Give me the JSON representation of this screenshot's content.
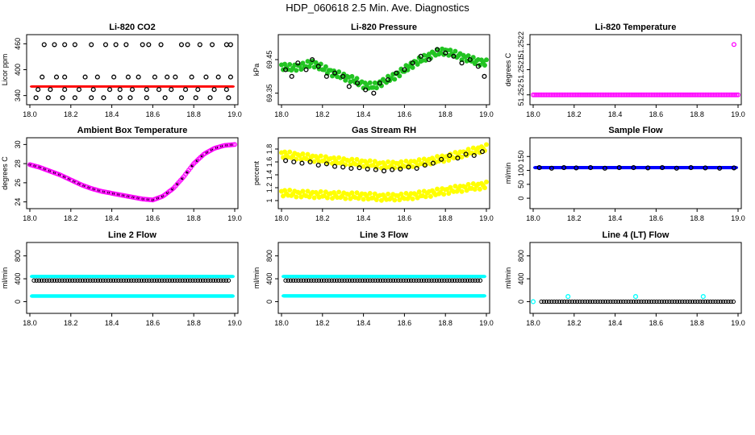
{
  "page_title": "HDP_060618  2.5 Min. Ave. Diagnostics",
  "colors": {
    "red": "#ff0000",
    "green": "#22c422",
    "magenta": "#ff00ff",
    "yellow": "#ffff00",
    "blue": "#0000ff",
    "cyan": "#00ffff",
    "black": "#000000"
  },
  "chart_data": [
    {
      "id": "co2",
      "type": "scatter",
      "title": "Li-820 CO2",
      "ylabel": "Licor ppm",
      "xlim": [
        18.0,
        19.0
      ],
      "ylim": [
        330,
        470
      ],
      "xticks": [
        "18.0",
        "18.2",
        "18.4",
        "18.6",
        "18.8",
        "19.0"
      ],
      "yticks": [
        340,
        400,
        460
      ],
      "ytick_rotated": true,
      "series": [
        {
          "name": "co2_avg",
          "color": "red",
          "style": "band",
          "x": [
            18.0,
            19.0
          ],
          "y": [
            360,
            362
          ]
        },
        {
          "name": "co2_high",
          "color": "black",
          "style": "open",
          "x": [
            18.07,
            18.12,
            18.17,
            18.22,
            18.3,
            18.37,
            18.42,
            18.47,
            18.55,
            18.58,
            18.64,
            18.74,
            18.77,
            18.83,
            18.89,
            18.96,
            18.98
          ],
          "y": [
            458,
            458,
            458,
            458,
            458,
            458,
            458,
            458,
            458,
            458,
            458,
            458,
            458,
            458,
            458,
            458,
            458
          ]
        },
        {
          "name": "co2_mid",
          "color": "black",
          "style": "open",
          "x": [
            18.06,
            18.13,
            18.17,
            18.27,
            18.33,
            18.41,
            18.48,
            18.53,
            18.61,
            18.67,
            18.71,
            18.79,
            18.86,
            18.92,
            18.98
          ],
          "y": [
            383,
            383,
            383,
            383,
            383,
            383,
            383,
            383,
            383,
            383,
            383,
            383,
            383,
            383,
            383
          ]
        },
        {
          "name": "co2_low1",
          "color": "black",
          "style": "open",
          "x": [
            18.04,
            18.1,
            18.17,
            18.24,
            18.31,
            18.39,
            18.44,
            18.5,
            18.57,
            18.63,
            18.69,
            18.76,
            18.82,
            18.9,
            18.96
          ],
          "y": [
            354,
            354,
            354,
            354,
            354,
            354,
            354,
            354,
            354,
            354,
            354,
            354,
            354,
            354,
            354
          ]
        },
        {
          "name": "co2_low2",
          "color": "black",
          "style": "open",
          "x": [
            18.03,
            18.09,
            18.16,
            18.22,
            18.3,
            18.36,
            18.44,
            18.49,
            18.57,
            18.66,
            18.74,
            18.81,
            18.88,
            18.97
          ],
          "y": [
            335,
            335,
            335,
            335,
            335,
            335,
            335,
            335,
            335,
            335,
            335,
            335,
            335,
            335
          ]
        }
      ]
    },
    {
      "id": "pressure",
      "type": "scatter",
      "title": "Li-820 Pressure",
      "ylabel": "kPa",
      "xlim": [
        18.0,
        19.0
      ],
      "ylim": [
        69.33,
        69.51
      ],
      "xticks": [
        "18.0",
        "18.2",
        "18.4",
        "18.6",
        "18.8",
        "19.0"
      ],
      "yticks": [
        69.35,
        69.45
      ],
      "ytick_rotated": true,
      "series": [
        {
          "name": "pressure_green",
          "color": "green",
          "style": "band_curve",
          "x": [
            18.0,
            18.05,
            18.1,
            18.15,
            18.2,
            18.25,
            18.3,
            18.35,
            18.4,
            18.45,
            18.5,
            18.55,
            18.6,
            18.65,
            18.7,
            18.75,
            18.8,
            18.85,
            18.9,
            18.95,
            19.0
          ],
          "y": [
            69.43,
            69.425,
            69.43,
            69.44,
            69.425,
            69.41,
            69.4,
            69.39,
            69.375,
            69.37,
            69.385,
            69.4,
            69.42,
            69.44,
            69.455,
            69.47,
            69.475,
            69.465,
            69.455,
            69.445,
            69.44
          ]
        },
        {
          "name": "pressure_black",
          "color": "black",
          "style": "open",
          "x": [
            18.02,
            18.05,
            18.08,
            18.12,
            18.15,
            18.18,
            18.22,
            18.26,
            18.3,
            18.33,
            18.37,
            18.41,
            18.45,
            18.48,
            18.52,
            18.56,
            18.6,
            18.64,
            18.68,
            18.72,
            18.76,
            18.8,
            18.84,
            18.88,
            18.92,
            18.96,
            18.99
          ],
          "y": [
            69.42,
            69.4,
            69.44,
            69.42,
            69.45,
            69.43,
            69.4,
            69.41,
            69.4,
            69.37,
            69.38,
            69.36,
            69.35,
            69.38,
            69.39,
            69.41,
            69.42,
            69.44,
            69.46,
            69.45,
            69.48,
            69.47,
            69.46,
            69.44,
            69.45,
            69.43,
            69.4
          ]
        }
      ]
    },
    {
      "id": "licor_temp",
      "type": "scatter",
      "title": "Li-820 Temperature",
      "ylabel": "degrees C",
      "xlim": [
        18.0,
        19.0
      ],
      "ylim": [
        51.25198,
        51.25222
      ],
      "xticks": [
        "18.0",
        "18.2",
        "18.4",
        "18.6",
        "18.8",
        "19.0"
      ],
      "yticks": [
        51.252,
        51.2521,
        51.2522
      ],
      "ytick_rotated": true,
      "series": [
        {
          "name": "temp_line",
          "color": "magenta",
          "style": "dense",
          "x": [
            18.0,
            19.0
          ],
          "y": [
            51.252,
            51.252
          ]
        },
        {
          "name": "temp_outlier",
          "color": "magenta",
          "style": "open",
          "x": [
            18.98
          ],
          "y": [
            51.2522
          ]
        }
      ]
    },
    {
      "id": "box_temp",
      "type": "scatter",
      "title": "Ambient Box Temperature",
      "ylabel": "degrees C",
      "xlim": [
        18.0,
        19.0
      ],
      "ylim": [
        23.8,
        30.2
      ],
      "xticks": [
        "18.0",
        "18.2",
        "18.4",
        "18.6",
        "18.8",
        "19.0"
      ],
      "yticks": [
        24,
        26,
        28,
        30
      ],
      "ytick_rotated": true,
      "series": [
        {
          "name": "box_temp_curve",
          "color": "magenta",
          "style": "dense_curve",
          "x": [
            18.0,
            18.05,
            18.1,
            18.15,
            18.2,
            18.25,
            18.3,
            18.35,
            18.4,
            18.45,
            18.5,
            18.55,
            18.6,
            18.65,
            18.7,
            18.75,
            18.8,
            18.85,
            18.9,
            18.95,
            19.0
          ],
          "y": [
            27.9,
            27.6,
            27.2,
            26.8,
            26.3,
            25.8,
            25.4,
            25.1,
            24.9,
            24.7,
            24.5,
            24.3,
            24.2,
            24.6,
            25.4,
            26.6,
            28.0,
            29.0,
            29.6,
            29.9,
            30.0
          ]
        }
      ]
    },
    {
      "id": "rh",
      "type": "scatter",
      "title": "Gas Stream RH",
      "ylabel": "percent",
      "xlim": [
        18.0,
        19.0
      ],
      "ylim": [
        0.95,
        1.9
      ],
      "xticks": [
        "18.0",
        "18.2",
        "18.4",
        "18.6",
        "18.8",
        "19.0"
      ],
      "yticks": [
        1.0,
        1.2,
        1.4,
        1.6,
        1.8
      ],
      "ytick_rotated": true,
      "series": [
        {
          "name": "rh_upper_yellow",
          "color": "yellow",
          "style": "band_curve",
          "x": [
            18.0,
            18.1,
            18.2,
            18.3,
            18.4,
            18.5,
            18.6,
            18.7,
            18.8,
            18.9,
            19.0
          ],
          "y": [
            1.72,
            1.68,
            1.64,
            1.61,
            1.58,
            1.55,
            1.56,
            1.6,
            1.66,
            1.74,
            1.82
          ]
        },
        {
          "name": "rh_lower_yellow",
          "color": "yellow",
          "style": "band_curve",
          "x": [
            18.0,
            18.1,
            18.2,
            18.3,
            18.4,
            18.5,
            18.6,
            18.7,
            18.8,
            18.9,
            19.0
          ],
          "y": [
            1.12,
            1.1,
            1.09,
            1.08,
            1.07,
            1.05,
            1.06,
            1.1,
            1.15,
            1.2,
            1.24
          ]
        },
        {
          "name": "rh_black",
          "color": "black",
          "style": "open",
          "x": [
            18.02,
            18.06,
            18.1,
            18.14,
            18.18,
            18.22,
            18.26,
            18.3,
            18.34,
            18.38,
            18.42,
            18.46,
            18.5,
            18.54,
            18.58,
            18.62,
            18.66,
            18.7,
            18.74,
            18.78,
            18.82,
            18.86,
            18.9,
            18.94,
            18.98
          ],
          "y": [
            1.62,
            1.6,
            1.58,
            1.6,
            1.55,
            1.57,
            1.53,
            1.52,
            1.5,
            1.51,
            1.49,
            1.48,
            1.46,
            1.48,
            1.49,
            1.52,
            1.5,
            1.55,
            1.58,
            1.64,
            1.7,
            1.66,
            1.72,
            1.7,
            1.76
          ]
        }
      ]
    },
    {
      "id": "sample_flow",
      "type": "scatter",
      "title": "Sample Flow",
      "ylabel": "ml/min",
      "xlim": [
        18.0,
        19.0
      ],
      "ylim": [
        -20,
        200
      ],
      "xticks": [
        "18.0",
        "18.2",
        "18.4",
        "18.6",
        "18.8",
        "19.0"
      ],
      "yticks": [
        0,
        50,
        100,
        150
      ],
      "ytick_rotated": true,
      "series": [
        {
          "name": "sample_flow_blue",
          "color": "blue",
          "style": "band",
          "x": [
            18.0,
            19.0
          ],
          "y": [
            107,
            113
          ]
        },
        {
          "name": "sample_flow_black",
          "color": "black",
          "style": "open",
          "x": [
            18.03,
            18.09,
            18.15,
            18.21,
            18.28,
            18.35,
            18.42,
            18.49,
            18.56,
            18.63,
            18.7,
            18.77,
            18.84,
            18.91,
            18.98
          ],
          "y": [
            110,
            108,
            110,
            109,
            110,
            108,
            110,
            110,
            109,
            110,
            108,
            110,
            109,
            108,
            109
          ]
        }
      ]
    },
    {
      "id": "line2_flow",
      "type": "scatter",
      "title": "Line 2 Flow",
      "ylabel": "ml/min",
      "xlim": [
        18.0,
        19.0
      ],
      "ylim": [
        -120,
        950
      ],
      "xticks": [
        "18.0",
        "18.2",
        "18.4",
        "18.6",
        "18.8",
        "19.0"
      ],
      "yticks": [
        0,
        400,
        800
      ],
      "ytick_rotated": true,
      "series": [
        {
          "name": "line2_high",
          "color": "cyan",
          "style": "band",
          "x": [
            18.0,
            19.0
          ],
          "y": [
            425,
            455
          ]
        },
        {
          "name": "line2_low",
          "color": "cyan",
          "style": "band",
          "x": [
            18.0,
            19.0
          ],
          "y": [
            80,
            115
          ]
        },
        {
          "name": "line2_black",
          "color": "black",
          "style": "open_dense",
          "x": [
            18.02,
            18.98
          ],
          "y": [
            370,
            370
          ]
        }
      ]
    },
    {
      "id": "line3_flow",
      "type": "scatter",
      "title": "Line 3 Flow",
      "ylabel": "ml/min",
      "xlim": [
        18.0,
        19.0
      ],
      "ylim": [
        -120,
        950
      ],
      "xticks": [
        "18.0",
        "18.2",
        "18.4",
        "18.6",
        "18.8",
        "19.0"
      ],
      "yticks": [
        0,
        400,
        800
      ],
      "ytick_rotated": true,
      "series": [
        {
          "name": "line3_high",
          "color": "cyan",
          "style": "band",
          "x": [
            18.0,
            19.0
          ],
          "y": [
            425,
            455
          ]
        },
        {
          "name": "line3_low",
          "color": "cyan",
          "style": "band",
          "x": [
            18.0,
            19.0
          ],
          "y": [
            85,
            118
          ]
        },
        {
          "name": "line3_black",
          "color": "black",
          "style": "open_dense",
          "x": [
            18.02,
            18.98
          ],
          "y": [
            370,
            370
          ]
        }
      ]
    },
    {
      "id": "line4_flow",
      "type": "scatter",
      "title": "Line 4 (LT) Flow",
      "ylabel": "ml/min",
      "xlim": [
        18.0,
        19.0
      ],
      "ylim": [
        -120,
        950
      ],
      "xticks": [
        "18.0",
        "18.2",
        "18.4",
        "18.6",
        "18.8",
        "19.0"
      ],
      "yticks": [
        0,
        400,
        800
      ],
      "ytick_rotated": true,
      "series": [
        {
          "name": "line4_black",
          "color": "black",
          "style": "open_dense",
          "x": [
            18.04,
            18.98
          ],
          "y": [
            0,
            0
          ]
        },
        {
          "name": "line4_cyan",
          "color": "cyan",
          "style": "open",
          "x": [
            18.0,
            18.17,
            18.5,
            18.83
          ],
          "y": [
            0,
            90,
            90,
            90
          ]
        }
      ]
    }
  ]
}
